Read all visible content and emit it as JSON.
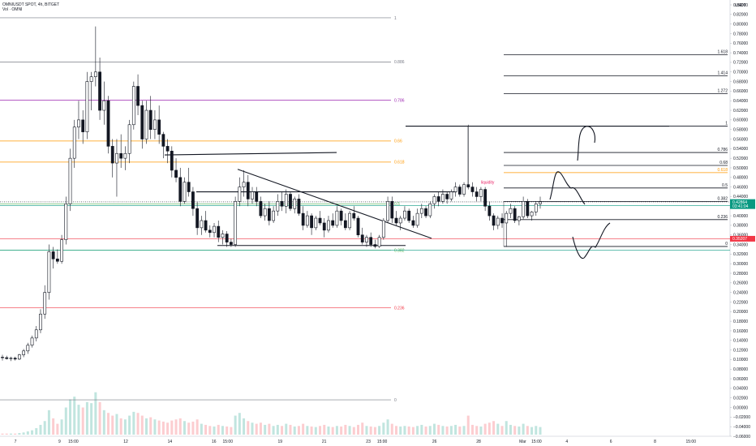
{
  "header": {
    "symbol_line": "OMNIUSDT SPOT, 4h, BITGET",
    "volume_line": "Vol · OMNI"
  },
  "axis": {
    "currency": "USDT"
  },
  "price_axis_labels": [
    "0.84000",
    "0.82000",
    "0.80000",
    "0.78000",
    "0.76000",
    "0.74000",
    "0.72000",
    "0.70000",
    "0.68000",
    "0.66000",
    "0.64000",
    "0.62000",
    "0.60000",
    "0.58000",
    "0.56000",
    "0.54000",
    "0.52000",
    "0.50000",
    "0.48000",
    "0.46000",
    "0.44000",
    "0.42000",
    "0.40000",
    "0.38000",
    "0.36000",
    "0.34000",
    "0.32000",
    "0.30000",
    "0.28000",
    "0.26000",
    "0.24000",
    "0.22000",
    "0.20000",
    "0.18000",
    "0.16000",
    "0.14000",
    "0.12000",
    "0.10000",
    "0.08000",
    "0.06000",
    "0.04000",
    "0.02000",
    "0.00000",
    "−0.02000",
    "−0.04000",
    "−0.06000"
  ],
  "price_tags": [
    {
      "value": 0.42864,
      "text": "0.42864",
      "sub": "03:41:04",
      "color": "#089981"
    },
    {
      "value": 0.35207,
      "text": "0.35207",
      "sub": "",
      "color": "#f23645"
    }
  ],
  "time_axis": [
    {
      "label": "7",
      "x": 7
    },
    {
      "label": "9",
      "x": 9
    },
    {
      "label": "15:00",
      "x": 9.625
    },
    {
      "label": "12",
      "x": 12
    },
    {
      "label": "14",
      "x": 14
    },
    {
      "label": "16",
      "x": 16
    },
    {
      "label": "15:00",
      "x": 16.625
    },
    {
      "label": "19",
      "x": 19
    },
    {
      "label": "21",
      "x": 21
    },
    {
      "label": "23",
      "x": 23
    },
    {
      "label": "15:00",
      "x": 23.625
    },
    {
      "label": "26",
      "x": 26
    },
    {
      "label": "28",
      "x": 28
    },
    {
      "label": "Mar",
      "x": 30
    },
    {
      "label": "15:00",
      "x": 30.625
    },
    {
      "label": "4",
      "x": 32
    },
    {
      "label": "6",
      "x": 34
    },
    {
      "label": "8",
      "x": 36
    },
    {
      "label": "15:00",
      "x": 37.625
    }
  ],
  "fib_retracement": {
    "levels": [
      {
        "ratio": "1",
        "price": 0.813,
        "color": "#787b86"
      },
      {
        "ratio": "0.886",
        "price": 0.721,
        "color": "#787b86"
      },
      {
        "ratio": "0.786",
        "price": 0.641,
        "color": "#9c27b0"
      },
      {
        "ratio": "0.66",
        "price": 0.556,
        "color": "#ff9800"
      },
      {
        "ratio": "0.618",
        "price": 0.512,
        "color": "#ff9800"
      },
      {
        "ratio": "0.5",
        "price": 0.425,
        "color": "#4caf50"
      },
      {
        "ratio": "0.382",
        "price": 0.328,
        "color": "#4caf50"
      },
      {
        "ratio": "0.236",
        "price": 0.208,
        "color": "#f23645"
      },
      {
        "ratio": "0",
        "price": 0.016,
        "color": "#787b86"
      }
    ]
  },
  "fib_extension": {
    "levels": [
      {
        "ratio": "1.618",
        "price": 0.736
      },
      {
        "ratio": "1.414",
        "price": 0.692
      },
      {
        "ratio": "1.272",
        "price": 0.655
      },
      {
        "ratio": "1",
        "price": 0.587
      },
      {
        "ratio": "0.786",
        "price": 0.532
      },
      {
        "ratio": "0.68",
        "price": 0.505
      },
      {
        "ratio": "0.618",
        "price": 0.49,
        "color": "#ff9800"
      },
      {
        "ratio": "0.5",
        "price": 0.458
      },
      {
        "ratio": "0.382",
        "price": 0.43
      },
      {
        "ratio": "0.236",
        "price": 0.392
      },
      {
        "ratio": "0",
        "price": 0.336
      }
    ]
  },
  "annotations": [
    {
      "text": "liquidity",
      "x": 28.1,
      "price": 0.467,
      "color": "#e91e63"
    }
  ],
  "horizontal_lines": [
    {
      "price": 0.352,
      "color": "#f23645"
    },
    {
      "price": 0.328,
      "color": "#089981"
    },
    {
      "price": 0.421,
      "color": "#089981"
    },
    {
      "price": 0.429,
      "color": "#131722",
      "dotted": true
    }
  ],
  "chart_data": {
    "type": "candlestick",
    "title": "OMNIUSDT SPOT, 4h, BITGET",
    "ylabel": "USDT",
    "ylim": [
      -0.06,
      0.84
    ],
    "xlim": [
      6.3,
      39.4
    ],
    "candles": [
      {
        "o": 0.105,
        "h": 0.11,
        "l": 0.098,
        "c": 0.104
      },
      {
        "o": 0.104,
        "h": 0.108,
        "l": 0.1,
        "c": 0.102
      },
      {
        "o": 0.102,
        "h": 0.106,
        "l": 0.097,
        "c": 0.103
      },
      {
        "o": 0.103,
        "h": 0.106,
        "l": 0.098,
        "c": 0.101
      },
      {
        "o": 0.101,
        "h": 0.112,
        "l": 0.099,
        "c": 0.11
      },
      {
        "o": 0.11,
        "h": 0.122,
        "l": 0.105,
        "c": 0.118
      },
      {
        "o": 0.118,
        "h": 0.135,
        "l": 0.112,
        "c": 0.13
      },
      {
        "o": 0.13,
        "h": 0.15,
        "l": 0.125,
        "c": 0.145
      },
      {
        "o": 0.145,
        "h": 0.17,
        "l": 0.138,
        "c": 0.162
      },
      {
        "o": 0.162,
        "h": 0.205,
        "l": 0.155,
        "c": 0.195
      },
      {
        "o": 0.195,
        "h": 0.255,
        "l": 0.185,
        "c": 0.24
      },
      {
        "o": 0.24,
        "h": 0.34,
        "l": 0.225,
        "c": 0.325
      },
      {
        "o": 0.325,
        "h": 0.335,
        "l": 0.29,
        "c": 0.31
      },
      {
        "o": 0.31,
        "h": 0.33,
        "l": 0.3,
        "c": 0.305
      },
      {
        "o": 0.305,
        "h": 0.36,
        "l": 0.3,
        "c": 0.35
      },
      {
        "o": 0.35,
        "h": 0.44,
        "l": 0.34,
        "c": 0.425
      },
      {
        "o": 0.425,
        "h": 0.54,
        "l": 0.41,
        "c": 0.52
      },
      {
        "o": 0.52,
        "h": 0.6,
        "l": 0.5,
        "c": 0.585
      },
      {
        "o": 0.585,
        "h": 0.64,
        "l": 0.56,
        "c": 0.6
      },
      {
        "o": 0.6,
        "h": 0.62,
        "l": 0.55,
        "c": 0.575
      },
      {
        "o": 0.575,
        "h": 0.7,
        "l": 0.56,
        "c": 0.68
      },
      {
        "o": 0.68,
        "h": 0.7,
        "l": 0.62,
        "c": 0.69
      },
      {
        "o": 0.69,
        "h": 0.795,
        "l": 0.67,
        "c": 0.7
      },
      {
        "o": 0.7,
        "h": 0.73,
        "l": 0.6,
        "c": 0.62
      },
      {
        "o": 0.62,
        "h": 0.68,
        "l": 0.59,
        "c": 0.64
      },
      {
        "o": 0.64,
        "h": 0.65,
        "l": 0.53,
        "c": 0.545
      },
      {
        "o": 0.545,
        "h": 0.56,
        "l": 0.48,
        "c": 0.51
      },
      {
        "o": 0.51,
        "h": 0.56,
        "l": 0.44,
        "c": 0.53
      },
      {
        "o": 0.53,
        "h": 0.57,
        "l": 0.5,
        "c": 0.52
      },
      {
        "o": 0.52,
        "h": 0.545,
        "l": 0.495,
        "c": 0.53
      },
      {
        "o": 0.53,
        "h": 0.6,
        "l": 0.51,
        "c": 0.59
      },
      {
        "o": 0.59,
        "h": 0.68,
        "l": 0.58,
        "c": 0.67
      },
      {
        "o": 0.67,
        "h": 0.695,
        "l": 0.61,
        "c": 0.63
      },
      {
        "o": 0.63,
        "h": 0.64,
        "l": 0.54,
        "c": 0.56
      },
      {
        "o": 0.56,
        "h": 0.64,
        "l": 0.55,
        "c": 0.62
      },
      {
        "o": 0.62,
        "h": 0.65,
        "l": 0.56,
        "c": 0.58
      },
      {
        "o": 0.58,
        "h": 0.62,
        "l": 0.56,
        "c": 0.6
      },
      {
        "o": 0.6,
        "h": 0.63,
        "l": 0.55,
        "c": 0.57
      },
      {
        "o": 0.57,
        "h": 0.575,
        "l": 0.52,
        "c": 0.545
      },
      {
        "o": 0.545,
        "h": 0.56,
        "l": 0.51,
        "c": 0.535
      },
      {
        "o": 0.535,
        "h": 0.545,
        "l": 0.48,
        "c": 0.495
      },
      {
        "o": 0.495,
        "h": 0.52,
        "l": 0.47,
        "c": 0.48
      },
      {
        "o": 0.48,
        "h": 0.5,
        "l": 0.42,
        "c": 0.43
      },
      {
        "o": 0.43,
        "h": 0.48,
        "l": 0.425,
        "c": 0.47
      },
      {
        "o": 0.47,
        "h": 0.5,
        "l": 0.44,
        "c": 0.45
      },
      {
        "o": 0.45,
        "h": 0.46,
        "l": 0.4,
        "c": 0.415
      },
      {
        "o": 0.415,
        "h": 0.43,
        "l": 0.36,
        "c": 0.375
      },
      {
        "o": 0.375,
        "h": 0.4,
        "l": 0.36,
        "c": 0.39
      },
      {
        "o": 0.39,
        "h": 0.41,
        "l": 0.365,
        "c": 0.37
      },
      {
        "o": 0.37,
        "h": 0.38,
        "l": 0.355,
        "c": 0.365
      },
      {
        "o": 0.365,
        "h": 0.385,
        "l": 0.355,
        "c": 0.378
      },
      {
        "o": 0.378,
        "h": 0.39,
        "l": 0.345,
        "c": 0.355
      },
      {
        "o": 0.355,
        "h": 0.37,
        "l": 0.34,
        "c": 0.362
      },
      {
        "o": 0.362,
        "h": 0.368,
        "l": 0.335,
        "c": 0.345
      },
      {
        "o": 0.345,
        "h": 0.352,
        "l": 0.335,
        "c": 0.34
      },
      {
        "o": 0.34,
        "h": 0.44,
        "l": 0.335,
        "c": 0.43
      },
      {
        "o": 0.43,
        "h": 0.48,
        "l": 0.42,
        "c": 0.46
      },
      {
        "o": 0.46,
        "h": 0.495,
        "l": 0.44,
        "c": 0.47
      },
      {
        "o": 0.47,
        "h": 0.485,
        "l": 0.42,
        "c": 0.435
      },
      {
        "o": 0.435,
        "h": 0.46,
        "l": 0.425,
        "c": 0.45
      },
      {
        "o": 0.45,
        "h": 0.46,
        "l": 0.42,
        "c": 0.43
      },
      {
        "o": 0.43,
        "h": 0.44,
        "l": 0.395,
        "c": 0.4
      },
      {
        "o": 0.4,
        "h": 0.425,
        "l": 0.39,
        "c": 0.415
      },
      {
        "o": 0.415,
        "h": 0.43,
        "l": 0.38,
        "c": 0.39
      },
      {
        "o": 0.39,
        "h": 0.42,
        "l": 0.385,
        "c": 0.41
      },
      {
        "o": 0.41,
        "h": 0.445,
        "l": 0.4,
        "c": 0.43
      },
      {
        "o": 0.43,
        "h": 0.45,
        "l": 0.41,
        "c": 0.42
      },
      {
        "o": 0.42,
        "h": 0.455,
        "l": 0.405,
        "c": 0.445
      },
      {
        "o": 0.445,
        "h": 0.45,
        "l": 0.41,
        "c": 0.415
      },
      {
        "o": 0.415,
        "h": 0.44,
        "l": 0.405,
        "c": 0.435
      },
      {
        "o": 0.435,
        "h": 0.445,
        "l": 0.4,
        "c": 0.405
      },
      {
        "o": 0.405,
        "h": 0.42,
        "l": 0.37,
        "c": 0.38
      },
      {
        "o": 0.38,
        "h": 0.41,
        "l": 0.375,
        "c": 0.4
      },
      {
        "o": 0.4,
        "h": 0.405,
        "l": 0.36,
        "c": 0.375
      },
      {
        "o": 0.375,
        "h": 0.4,
        "l": 0.37,
        "c": 0.395
      },
      {
        "o": 0.395,
        "h": 0.41,
        "l": 0.38,
        "c": 0.385
      },
      {
        "o": 0.385,
        "h": 0.395,
        "l": 0.355,
        "c": 0.37
      },
      {
        "o": 0.37,
        "h": 0.4,
        "l": 0.365,
        "c": 0.39
      },
      {
        "o": 0.39,
        "h": 0.405,
        "l": 0.375,
        "c": 0.38
      },
      {
        "o": 0.38,
        "h": 0.42,
        "l": 0.375,
        "c": 0.41
      },
      {
        "o": 0.41,
        "h": 0.415,
        "l": 0.38,
        "c": 0.39
      },
      {
        "o": 0.39,
        "h": 0.405,
        "l": 0.37,
        "c": 0.375
      },
      {
        "o": 0.375,
        "h": 0.41,
        "l": 0.37,
        "c": 0.405
      },
      {
        "o": 0.405,
        "h": 0.42,
        "l": 0.39,
        "c": 0.395
      },
      {
        "o": 0.395,
        "h": 0.4,
        "l": 0.355,
        "c": 0.36
      },
      {
        "o": 0.36,
        "h": 0.375,
        "l": 0.34,
        "c": 0.345
      },
      {
        "o": 0.345,
        "h": 0.36,
        "l": 0.335,
        "c": 0.355
      },
      {
        "o": 0.355,
        "h": 0.365,
        "l": 0.335,
        "c": 0.34
      },
      {
        "o": 0.34,
        "h": 0.35,
        "l": 0.332,
        "c": 0.336
      },
      {
        "o": 0.336,
        "h": 0.36,
        "l": 0.333,
        "c": 0.355
      },
      {
        "o": 0.355,
        "h": 0.395,
        "l": 0.35,
        "c": 0.39
      },
      {
        "o": 0.39,
        "h": 0.44,
        "l": 0.385,
        "c": 0.43
      },
      {
        "o": 0.43,
        "h": 0.44,
        "l": 0.385,
        "c": 0.395
      },
      {
        "o": 0.395,
        "h": 0.41,
        "l": 0.38,
        "c": 0.385
      },
      {
        "o": 0.385,
        "h": 0.4,
        "l": 0.37,
        "c": 0.395
      },
      {
        "o": 0.395,
        "h": 0.42,
        "l": 0.39,
        "c": 0.41
      },
      {
        "o": 0.41,
        "h": 0.415,
        "l": 0.385,
        "c": 0.39
      },
      {
        "o": 0.39,
        "h": 0.4,
        "l": 0.375,
        "c": 0.38
      },
      {
        "o": 0.38,
        "h": 0.415,
        "l": 0.375,
        "c": 0.405
      },
      {
        "o": 0.405,
        "h": 0.425,
        "l": 0.395,
        "c": 0.415
      },
      {
        "o": 0.415,
        "h": 0.42,
        "l": 0.395,
        "c": 0.4
      },
      {
        "o": 0.4,
        "h": 0.43,
        "l": 0.395,
        "c": 0.425
      },
      {
        "o": 0.425,
        "h": 0.445,
        "l": 0.415,
        "c": 0.44
      },
      {
        "o": 0.44,
        "h": 0.45,
        "l": 0.42,
        "c": 0.43
      },
      {
        "o": 0.43,
        "h": 0.455,
        "l": 0.425,
        "c": 0.445
      },
      {
        "o": 0.445,
        "h": 0.45,
        "l": 0.425,
        "c": 0.435
      },
      {
        "o": 0.435,
        "h": 0.455,
        "l": 0.43,
        "c": 0.45
      },
      {
        "o": 0.45,
        "h": 0.47,
        "l": 0.44,
        "c": 0.46
      },
      {
        "o": 0.46,
        "h": 0.465,
        "l": 0.44,
        "c": 0.445
      },
      {
        "o": 0.445,
        "h": 0.47,
        "l": 0.44,
        "c": 0.465
      },
      {
        "o": 0.465,
        "h": 0.59,
        "l": 0.455,
        "c": 0.46
      },
      {
        "o": 0.46,
        "h": 0.47,
        "l": 0.44,
        "c": 0.45
      },
      {
        "o": 0.45,
        "h": 0.46,
        "l": 0.43,
        "c": 0.44
      },
      {
        "o": 0.44,
        "h": 0.46,
        "l": 0.43,
        "c": 0.455
      },
      {
        "o": 0.455,
        "h": 0.46,
        "l": 0.41,
        "c": 0.42
      },
      {
        "o": 0.42,
        "h": 0.43,
        "l": 0.39,
        "c": 0.4
      },
      {
        "o": 0.4,
        "h": 0.405,
        "l": 0.37,
        "c": 0.38
      },
      {
        "o": 0.38,
        "h": 0.4,
        "l": 0.372,
        "c": 0.395
      },
      {
        "o": 0.395,
        "h": 0.405,
        "l": 0.375,
        "c": 0.385
      },
      {
        "o": 0.385,
        "h": 0.41,
        "l": 0.335,
        "c": 0.405
      },
      {
        "o": 0.405,
        "h": 0.425,
        "l": 0.395,
        "c": 0.415
      },
      {
        "o": 0.415,
        "h": 0.42,
        "l": 0.385,
        "c": 0.39
      },
      {
        "o": 0.39,
        "h": 0.4,
        "l": 0.38,
        "c": 0.398
      },
      {
        "o": 0.398,
        "h": 0.44,
        "l": 0.393,
        "c": 0.43
      },
      {
        "o": 0.43,
        "h": 0.435,
        "l": 0.395,
        "c": 0.4
      },
      {
        "o": 0.4,
        "h": 0.41,
        "l": 0.39,
        "c": 0.408
      },
      {
        "o": 0.408,
        "h": 0.43,
        "l": 0.4,
        "c": 0.425
      },
      {
        "o": 0.425,
        "h": 0.44,
        "l": 0.415,
        "c": 0.429
      }
    ],
    "volume": [
      0.002,
      0.002,
      0.002,
      0.002,
      0.003,
      0.004,
      0.006,
      0.008,
      0.012,
      0.018,
      0.025,
      0.045,
      0.03,
      0.02,
      0.028,
      0.05,
      0.065,
      0.07,
      0.055,
      0.05,
      0.06,
      0.058,
      0.078,
      0.06,
      0.045,
      0.04,
      0.035,
      0.038,
      0.03,
      0.028,
      0.035,
      0.042,
      0.04,
      0.035,
      0.03,
      0.032,
      0.028,
      0.026,
      0.024,
      0.022,
      0.026,
      0.028,
      0.03,
      0.025,
      0.022,
      0.024,
      0.028,
      0.02,
      0.018,
      0.016,
      0.015,
      0.018,
      0.016,
      0.015,
      0.014,
      0.035,
      0.04,
      0.03,
      0.025,
      0.022,
      0.02,
      0.022,
      0.018,
      0.02,
      0.016,
      0.018,
      0.016,
      0.02,
      0.018,
      0.015,
      0.016,
      0.02,
      0.016,
      0.015,
      0.014,
      0.016,
      0.018,
      0.015,
      0.014,
      0.016,
      0.015,
      0.018,
      0.016,
      0.014,
      0.018,
      0.022,
      0.016,
      0.015,
      0.014,
      0.016,
      0.022,
      0.028,
      0.02,
      0.016,
      0.015,
      0.016,
      0.015,
      0.014,
      0.016,
      0.018,
      0.015,
      0.016,
      0.02,
      0.018,
      0.016,
      0.015,
      0.016,
      0.018,
      0.015,
      0.016,
      0.035,
      0.018,
      0.016,
      0.015,
      0.02,
      0.022,
      0.025,
      0.02,
      0.016,
      0.025,
      0.018,
      0.016,
      0.015,
      0.02,
      0.016,
      0.014,
      0.016,
      0.014
    ]
  }
}
